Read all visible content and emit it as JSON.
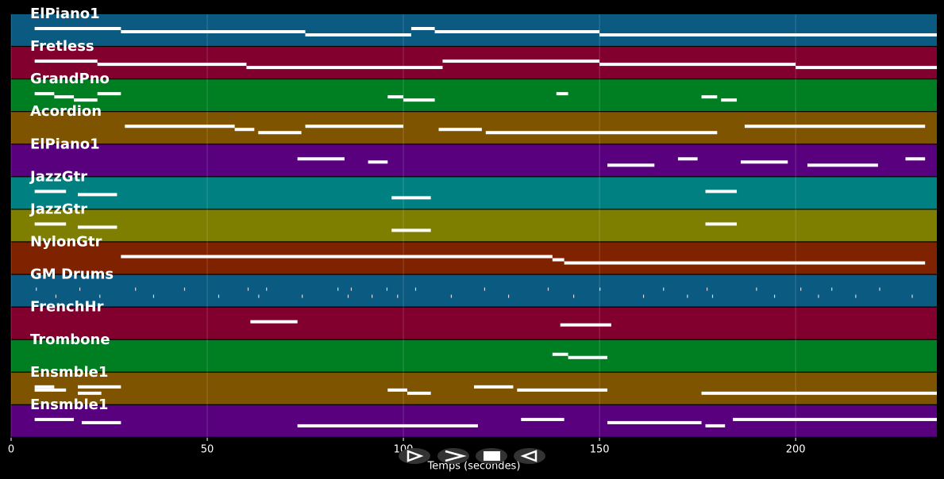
{
  "chart_data": {
    "type": "timeline",
    "xlabel": "Temps (secondes)",
    "xlim": [
      0,
      236
    ],
    "xticks": [
      0,
      50,
      100,
      150,
      200
    ],
    "grid": true,
    "tracks": [
      {
        "name": "ElPiano1",
        "color": "#0b5a82",
        "notes": [
          [
            6,
            28
          ],
          [
            28,
            75
          ],
          [
            75,
            102
          ],
          [
            102,
            108
          ],
          [
            108,
            150
          ],
          [
            150,
            236
          ]
        ]
      },
      {
        "name": "Fretless",
        "color": "#82002e",
        "notes": [
          [
            6,
            22
          ],
          [
            22,
            60
          ],
          [
            60,
            110
          ],
          [
            110,
            150
          ],
          [
            150,
            200
          ],
          [
            200,
            236
          ]
        ]
      },
      {
        "name": "GrandPno",
        "color": "#007e22",
        "notes": [
          [
            6,
            11
          ],
          [
            11,
            16
          ],
          [
            16,
            22
          ],
          [
            22,
            28
          ],
          [
            96,
            100
          ],
          [
            100,
            108
          ],
          [
            139,
            142
          ],
          [
            176,
            180
          ],
          [
            181,
            185
          ]
        ]
      },
      {
        "name": "Acordion",
        "color": "#7e5400",
        "notes": [
          [
            29,
            57
          ],
          [
            57,
            62
          ],
          [
            63,
            74
          ],
          [
            75,
            100
          ],
          [
            109,
            120
          ],
          [
            121,
            180
          ],
          [
            187,
            233
          ]
        ]
      },
      {
        "name": "ElPiano1",
        "color": "#58007e",
        "notes": [
          [
            73,
            85
          ],
          [
            91,
            96
          ],
          [
            152,
            164
          ],
          [
            170,
            175
          ],
          [
            186,
            198
          ],
          [
            203,
            221
          ],
          [
            228,
            233
          ]
        ]
      },
      {
        "name": "JazzGtr",
        "color": "#008080",
        "notes": [
          [
            6,
            14
          ],
          [
            17,
            27
          ],
          [
            97,
            107
          ],
          [
            177,
            185
          ]
        ]
      },
      {
        "name": "JazzGtr",
        "color": "#7e7e00",
        "notes": [
          [
            6,
            14
          ],
          [
            17,
            27
          ],
          [
            97,
            107
          ],
          [
            177,
            185
          ]
        ]
      },
      {
        "name": "NylonGtr",
        "color": "#7e2200",
        "notes": [
          [
            28,
            138
          ],
          [
            138,
            141
          ],
          [
            141,
            233
          ]
        ]
      },
      {
        "name": "GM Drums",
        "color": "#0b5a82",
        "hits": [
          6.3,
          11.3,
          17.4,
          22.5,
          31.6,
          36.2,
          44.1,
          52.8,
          60.3,
          63,
          65,
          74.1,
          83.2,
          85.8,
          86.6,
          91.9,
          95.7,
          98.4,
          103,
          112.1,
          120.6,
          126.7,
          136.8,
          143.3,
          150,
          161.1,
          166.2,
          172.3,
          177.3,
          178.7,
          189.9,
          194.5,
          201.2,
          205.7,
          209.1,
          215.2,
          221.3,
          229.6
        ]
      },
      {
        "name": "FrenchHr",
        "color": "#82002e",
        "notes": [
          [
            61,
            73
          ],
          [
            140,
            153
          ]
        ]
      },
      {
        "name": "Trombone",
        "color": "#007e22",
        "notes": [
          [
            138,
            142
          ],
          [
            142,
            152
          ]
        ]
      },
      {
        "name": "Ensmble1",
        "color": "#7e5400",
        "notes": [
          [
            6,
            11
          ],
          [
            6,
            14
          ],
          [
            17,
            23
          ],
          [
            17,
            28
          ],
          [
            96,
            101
          ],
          [
            101,
            107
          ],
          [
            118,
            128
          ],
          [
            129,
            152
          ],
          [
            176,
            236
          ]
        ]
      },
      {
        "name": "Ensmble1",
        "color": "#58007e",
        "notes": [
          [
            6,
            16
          ],
          [
            18,
            28
          ],
          [
            73,
            119
          ],
          [
            130,
            141
          ],
          [
            152,
            176
          ],
          [
            177,
            182
          ],
          [
            184,
            236
          ]
        ]
      }
    ]
  }
}
